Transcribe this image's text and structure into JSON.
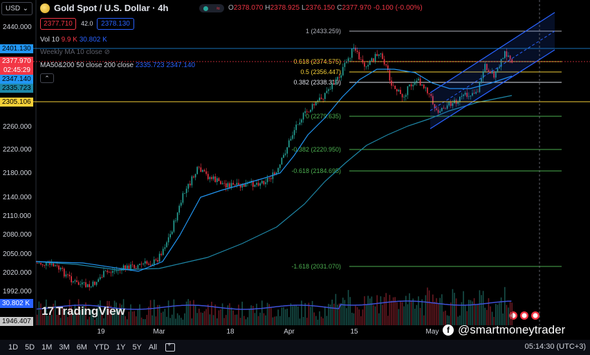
{
  "header": {
    "symbol_select": "USD",
    "title": "Gold Spot / U.S. Dollar · 4h",
    "ohlc": {
      "o_label": "O",
      "o": "2378.070",
      "h_label": "H",
      "h": "2378.925",
      "l_label": "L",
      "l": "2376.150",
      "c_label": "C",
      "c": "2377.970",
      "change": "-0.100 (-0.00%)"
    },
    "bid": "2377.710",
    "spread": "42.0",
    "ask": "2378.130"
  },
  "legend": {
    "vol": {
      "label": "Vol 10",
      "v1": "9.9 K",
      "v2": "30.802 K"
    },
    "weekly_ma": "Weekly MA 10 close",
    "ma": {
      "label": "MA50&200 50 close 200 close",
      "v1": "2335.723",
      "v2": "2347.140"
    }
  },
  "price_axis": {
    "ticks": [
      "2440.000",
      "2260.000",
      "2220.000",
      "2180.000",
      "2140.000",
      "2110.000",
      "2080.000",
      "2050.000",
      "2020.000",
      "1992.000"
    ],
    "tags": {
      "weekly": "2401.130",
      "last": "2377.970",
      "countdown": "02:45:29",
      "ma200": "2347.140",
      "ma50": "2335.723",
      "hline": "2305.106",
      "vol": "30.802 K",
      "bottom": "1946.407"
    }
  },
  "time_axis": [
    "19",
    "Mar",
    "18",
    "Apr",
    "15",
    "May"
  ],
  "fib_levels": [
    {
      "label": "1 (2433.259)",
      "color": "#b2b5be"
    },
    {
      "label": "0.618 (2374.575)",
      "color": "#f5d038"
    },
    {
      "label": "0.5 (2356.447)",
      "color": "#f5d038"
    },
    {
      "label": "0.382 (2338.319)",
      "color": "#e0e3eb"
    },
    {
      "label": "0 (2279.635)",
      "color": "#4caf50"
    },
    {
      "label": "-0.382 (2220.950)",
      "color": "#4caf50"
    },
    {
      "label": "-0.618 (2184.695)",
      "color": "#4caf50"
    },
    {
      "label": "-1.618 (2031.070)",
      "color": "#4caf50"
    }
  ],
  "watermark": "TradingView",
  "social": "@smartmoneytrader",
  "timeframes": [
    "1D",
    "5D",
    "1M",
    "3M",
    "6M",
    "YTD",
    "1Y",
    "5Y",
    "All"
  ],
  "clock": "05:14:30 (UTC+3)",
  "colors": {
    "up": "#26a69a",
    "down": "#f23645",
    "ma50": "#2196f3",
    "ma200": "#1e88a8",
    "channel": "#2962ff",
    "hline": "#f5d038"
  }
}
